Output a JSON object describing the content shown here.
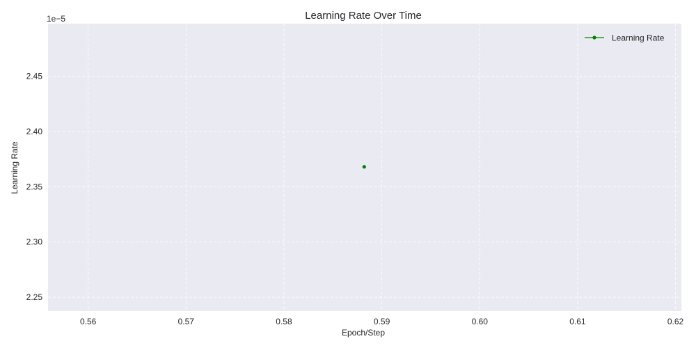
{
  "chart_data": {
    "type": "line",
    "title": "Learning Rate Over Time",
    "xlabel": "Epoch/Step",
    "ylabel": "Learning Rate",
    "y_offset_label": "1e−5",
    "xlim": [
      0.5559,
      0.6206
    ],
    "ylim": [
      2.2375,
      2.4975
    ],
    "x_ticks": [
      0.56,
      0.57,
      0.58,
      0.59,
      0.6,
      0.61,
      0.62
    ],
    "x_tick_labels": [
      "0.56",
      "0.57",
      "0.58",
      "0.59",
      "0.60",
      "0.61",
      "0.62"
    ],
    "y_ticks": [
      2.25,
      2.3,
      2.35,
      2.4,
      2.45
    ],
    "y_tick_labels": [
      "2.25",
      "2.30",
      "2.35",
      "2.40",
      "2.45"
    ],
    "grid": true,
    "legend_position": "top-right",
    "series": [
      {
        "name": "Learning Rate",
        "color": "#008000",
        "marker": "circle",
        "x": [
          0.5882
        ],
        "y": [
          2.368
        ]
      }
    ]
  },
  "colors": {
    "plot_background": "#eaeaf2",
    "grid": "#ffffff",
    "text": "#262626"
  }
}
